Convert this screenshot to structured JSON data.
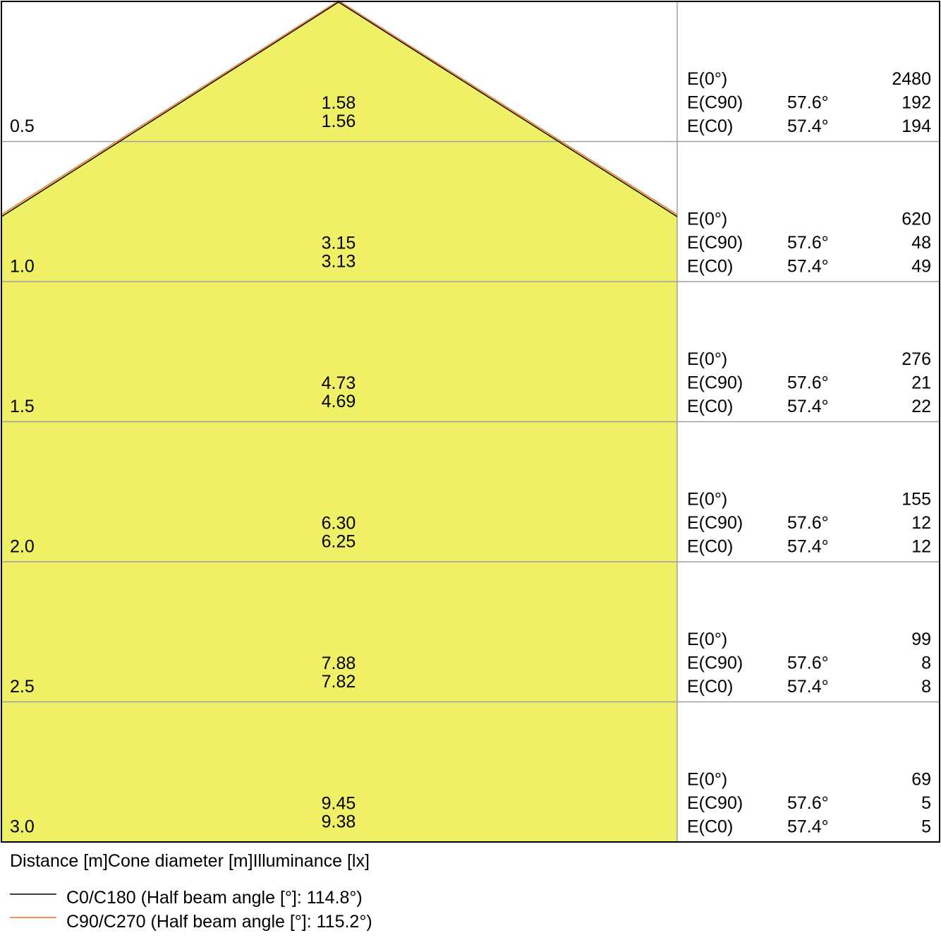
{
  "footer_label": "Distance [m]Cone diameter [m]Illuminance [lx]",
  "colors": {
    "fill": "#eff066",
    "c0_line": "#000000",
    "c90_line": "#f07020",
    "grid": "#a0a0a0"
  },
  "legend": [
    {
      "label": "C0/C180 (Half beam angle [°]: 114.8°)",
      "color": "#000000"
    },
    {
      "label": "C90/C270 (Half beam angle [°]: 115.2°)",
      "color": "#f07020"
    }
  ],
  "rows": [
    {
      "distance": "0.5",
      "diameters": [
        "1.58",
        "1.56"
      ],
      "e": [
        {
          "label": "E(0°)",
          "angle": "",
          "value": "2480"
        },
        {
          "label": "E(C90)",
          "angle": "57.6°",
          "value": "192"
        },
        {
          "label": "E(C0)",
          "angle": "57.4°",
          "value": "194"
        }
      ]
    },
    {
      "distance": "1.0",
      "diameters": [
        "3.15",
        "3.13"
      ],
      "e": [
        {
          "label": "E(0°)",
          "angle": "",
          "value": "620"
        },
        {
          "label": "E(C90)",
          "angle": "57.6°",
          "value": "48"
        },
        {
          "label": "E(C0)",
          "angle": "57.4°",
          "value": "49"
        }
      ]
    },
    {
      "distance": "1.5",
      "diameters": [
        "4.73",
        "4.69"
      ],
      "e": [
        {
          "label": "E(0°)",
          "angle": "",
          "value": "276"
        },
        {
          "label": "E(C90)",
          "angle": "57.6°",
          "value": "21"
        },
        {
          "label": "E(C0)",
          "angle": "57.4°",
          "value": "22"
        }
      ]
    },
    {
      "distance": "2.0",
      "diameters": [
        "6.30",
        "6.25"
      ],
      "e": [
        {
          "label": "E(0°)",
          "angle": "",
          "value": "155"
        },
        {
          "label": "E(C90)",
          "angle": "57.6°",
          "value": "12"
        },
        {
          "label": "E(C0)",
          "angle": "57.4°",
          "value": "12"
        }
      ]
    },
    {
      "distance": "2.5",
      "diameters": [
        "7.88",
        "7.82"
      ],
      "e": [
        {
          "label": "E(0°)",
          "angle": "",
          "value": "99"
        },
        {
          "label": "E(C90)",
          "angle": "57.6°",
          "value": "8"
        },
        {
          "label": "E(C0)",
          "angle": "57.4°",
          "value": "8"
        }
      ]
    },
    {
      "distance": "3.0",
      "diameters": [
        "9.45",
        "9.38"
      ],
      "e": [
        {
          "label": "E(0°)",
          "angle": "",
          "value": "69"
        },
        {
          "label": "E(C90)",
          "angle": "57.6°",
          "value": "5"
        },
        {
          "label": "E(C0)",
          "angle": "57.4°",
          "value": "5"
        }
      ]
    }
  ]
}
